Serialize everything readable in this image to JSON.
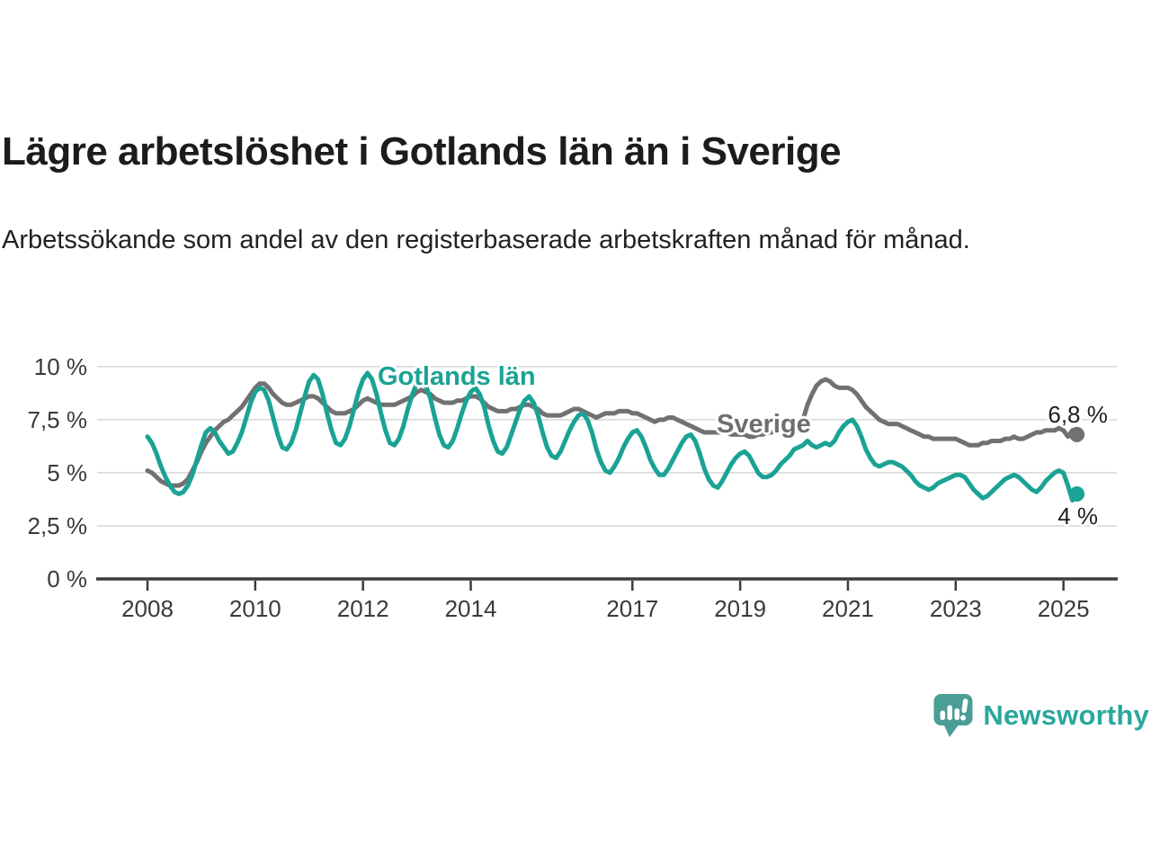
{
  "header": {
    "title": "Lägre arbetslöshet i Gotlands län än i Sverige",
    "subtitle": "Arbetssökande som andel av den registerbaserade arbetskraften månad för månad."
  },
  "chart_data": {
    "type": "line",
    "title": "Lägre arbetslöshet i Gotlands län än i Sverige",
    "subtitle": "Arbetssökande som andel av den registerbaserade arbetskraften månad för månad.",
    "x_unit": "month",
    "x_start_year": 2008,
    "x_range_years": [
      2008,
      2025.25
    ],
    "ylim": [
      0,
      10.5
    ],
    "grid": true,
    "legend_position": "inline-labels",
    "y_ticks": [
      {
        "value": 0,
        "label": "0 %"
      },
      {
        "value": 2.5,
        "label": "2,5 %"
      },
      {
        "value": 5,
        "label": "5 %"
      },
      {
        "value": 7.5,
        "label": "7,5 %"
      },
      {
        "value": 10,
        "label": "10 %"
      }
    ],
    "x_ticks": [
      {
        "value": 2008,
        "label": "2008"
      },
      {
        "value": 2010,
        "label": "2010"
      },
      {
        "value": 2012,
        "label": "2012"
      },
      {
        "value": 2014,
        "label": "2014"
      },
      {
        "value": 2017,
        "label": "2017"
      },
      {
        "value": 2019,
        "label": "2019"
      },
      {
        "value": 2021,
        "label": "2021"
      },
      {
        "value": 2023,
        "label": "2023"
      },
      {
        "value": 2025,
        "label": "2025"
      }
    ],
    "series": [
      {
        "name": "Gotlands län",
        "color": "#1aa394",
        "end_label": "4 %",
        "end_value": 4.0,
        "values": [
          6.7,
          6.4,
          5.9,
          5.3,
          4.8,
          4.4,
          4.1,
          4.0,
          4.1,
          4.4,
          4.9,
          5.6,
          6.3,
          6.9,
          7.1,
          6.9,
          6.5,
          6.2,
          5.9,
          6.0,
          6.4,
          6.9,
          7.6,
          8.3,
          8.8,
          9.0,
          8.9,
          8.4,
          7.6,
          6.8,
          6.2,
          6.1,
          6.4,
          7.0,
          7.8,
          8.6,
          9.3,
          9.6,
          9.4,
          8.7,
          7.8,
          7.0,
          6.4,
          6.3,
          6.6,
          7.2,
          8.0,
          8.8,
          9.4,
          9.7,
          9.4,
          8.7,
          7.8,
          7.0,
          6.4,
          6.3,
          6.6,
          7.2,
          8.0,
          8.7,
          9.2,
          9.4,
          9.1,
          8.5,
          7.6,
          6.8,
          6.3,
          6.2,
          6.5,
          7.1,
          7.8,
          8.4,
          8.8,
          9.0,
          8.7,
          8.1,
          7.2,
          6.5,
          6.0,
          5.9,
          6.2,
          6.8,
          7.4,
          8.0,
          8.4,
          8.6,
          8.3,
          7.7,
          6.9,
          6.2,
          5.8,
          5.7,
          6.0,
          6.5,
          7.0,
          7.4,
          7.7,
          7.8,
          7.5,
          6.9,
          6.1,
          5.5,
          5.1,
          5.0,
          5.3,
          5.7,
          6.2,
          6.6,
          6.9,
          7.0,
          6.7,
          6.2,
          5.6,
          5.2,
          4.9,
          4.9,
          5.2,
          5.6,
          6.0,
          6.4,
          6.7,
          6.8,
          6.5,
          5.9,
          5.2,
          4.7,
          4.4,
          4.3,
          4.6,
          5.0,
          5.4,
          5.7,
          5.9,
          6.0,
          5.8,
          5.4,
          5.0,
          4.8,
          4.8,
          4.9,
          5.1,
          5.4,
          5.6,
          5.8,
          6.1,
          6.2,
          6.3,
          6.5,
          6.3,
          6.2,
          6.3,
          6.4,
          6.3,
          6.5,
          6.9,
          7.2,
          7.4,
          7.5,
          7.2,
          6.7,
          6.1,
          5.7,
          5.4,
          5.3,
          5.4,
          5.5,
          5.5,
          5.4,
          5.3,
          5.1,
          4.9,
          4.6,
          4.4,
          4.3,
          4.2,
          4.3,
          4.5,
          4.6,
          4.7,
          4.8,
          4.9,
          4.9,
          4.8,
          4.5,
          4.2,
          4.0,
          3.8,
          3.9,
          4.1,
          4.3,
          4.5,
          4.7,
          4.8,
          4.9,
          4.8,
          4.6,
          4.4,
          4.2,
          4.1,
          4.3,
          4.6,
          4.8,
          5.0,
          5.1,
          5.0,
          4.4,
          3.7,
          4.0
        ]
      },
      {
        "name": "Sverige",
        "color": "#717171",
        "end_label": "6,8 %",
        "end_value": 6.8,
        "values": [
          5.1,
          5.0,
          4.8,
          4.6,
          4.5,
          4.4,
          4.4,
          4.4,
          4.5,
          4.7,
          5.1,
          5.5,
          6.0,
          6.4,
          6.7,
          7.0,
          7.2,
          7.4,
          7.5,
          7.7,
          7.9,
          8.1,
          8.4,
          8.7,
          9.0,
          9.2,
          9.2,
          9.0,
          8.7,
          8.5,
          8.3,
          8.2,
          8.2,
          8.3,
          8.4,
          8.5,
          8.6,
          8.6,
          8.5,
          8.3,
          8.1,
          7.9,
          7.8,
          7.8,
          7.8,
          7.9,
          8.0,
          8.2,
          8.4,
          8.5,
          8.4,
          8.3,
          8.2,
          8.2,
          8.2,
          8.2,
          8.3,
          8.4,
          8.5,
          8.6,
          8.8,
          8.9,
          8.8,
          8.7,
          8.5,
          8.4,
          8.3,
          8.3,
          8.3,
          8.4,
          8.4,
          8.5,
          8.6,
          8.6,
          8.5,
          8.3,
          8.1,
          8.0,
          7.9,
          7.9,
          7.9,
          8.0,
          8.0,
          8.1,
          8.2,
          8.2,
          8.1,
          8.0,
          7.8,
          7.7,
          7.7,
          7.7,
          7.7,
          7.8,
          7.9,
          8.0,
          8.0,
          7.9,
          7.8,
          7.7,
          7.6,
          7.7,
          7.8,
          7.8,
          7.8,
          7.9,
          7.9,
          7.9,
          7.8,
          7.8,
          7.7,
          7.6,
          7.5,
          7.4,
          7.5,
          7.5,
          7.6,
          7.6,
          7.5,
          7.4,
          7.3,
          7.2,
          7.1,
          7.0,
          6.9,
          6.9,
          6.9,
          6.9,
          6.9,
          6.9,
          6.8,
          6.8,
          6.8,
          6.8,
          6.7,
          6.7,
          6.8,
          6.8,
          6.9,
          6.9,
          7.0,
          7.0,
          7.1,
          7.1,
          7.2,
          7.2,
          7.5,
          8.2,
          8.7,
          9.1,
          9.3,
          9.4,
          9.3,
          9.1,
          9.0,
          9.0,
          9.0,
          8.9,
          8.7,
          8.4,
          8.1,
          7.9,
          7.7,
          7.5,
          7.4,
          7.3,
          7.3,
          7.3,
          7.2,
          7.1,
          7.0,
          6.9,
          6.8,
          6.7,
          6.7,
          6.6,
          6.6,
          6.6,
          6.6,
          6.6,
          6.6,
          6.5,
          6.4,
          6.3,
          6.3,
          6.3,
          6.4,
          6.4,
          6.5,
          6.5,
          6.5,
          6.6,
          6.6,
          6.7,
          6.6,
          6.6,
          6.7,
          6.8,
          6.9,
          6.9,
          7.0,
          7.0,
          7.0,
          7.1,
          7.0,
          6.7,
          7.0,
          6.8
        ]
      }
    ]
  },
  "colors": {
    "accent_teal": "#1aa394",
    "series_gray": "#717171",
    "axis": "#3c3c3c",
    "gridline": "#d6d6d6",
    "logo_icon": "#4a9e96",
    "logo_text": "#2aa79e"
  },
  "branding": {
    "logo_text": "Newsworthy",
    "logo_icon": "newsworthy-speech-bubble-bar-chart-icon"
  }
}
